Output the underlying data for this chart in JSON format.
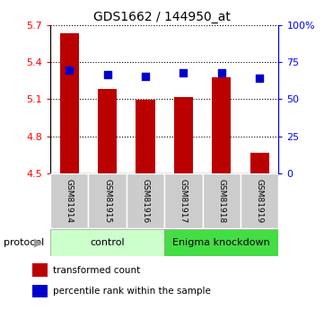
{
  "title": "GDS1662 / 144950_at",
  "samples": [
    "GSM81914",
    "GSM81915",
    "GSM81916",
    "GSM81917",
    "GSM81918",
    "GSM81919"
  ],
  "bar_values": [
    5.63,
    5.18,
    5.095,
    5.115,
    5.28,
    4.67
  ],
  "dot_values": [
    5.335,
    5.295,
    5.285,
    5.31,
    5.31,
    5.27
  ],
  "bar_color": "#bb0000",
  "dot_color": "#0000cc",
  "ylim_left": [
    4.5,
    5.7
  ],
  "ylim_right": [
    0,
    100
  ],
  "yticks_left": [
    4.5,
    4.8,
    5.1,
    5.4,
    5.7
  ],
  "ytick_labels_left": [
    "4.5",
    "4.8",
    "5.1",
    "5.4",
    "5.7"
  ],
  "yticks_right": [
    0,
    25,
    50,
    75,
    100
  ],
  "ytick_labels_right": [
    "0",
    "25",
    "50",
    "75",
    "100%"
  ],
  "groups": [
    {
      "label": "control",
      "color": "#ccffcc",
      "start": 0,
      "end": 3
    },
    {
      "label": "Enigma knockdown",
      "color": "#44dd44",
      "start": 3,
      "end": 6
    }
  ],
  "protocol_label": "protocol",
  "legend_bar_label": "transformed count",
  "legend_dot_label": "percentile rank within the sample",
  "bar_width": 0.5,
  "sample_box_color": "#cccccc",
  "figsize": [
    3.61,
    3.45
  ],
  "dpi": 100
}
